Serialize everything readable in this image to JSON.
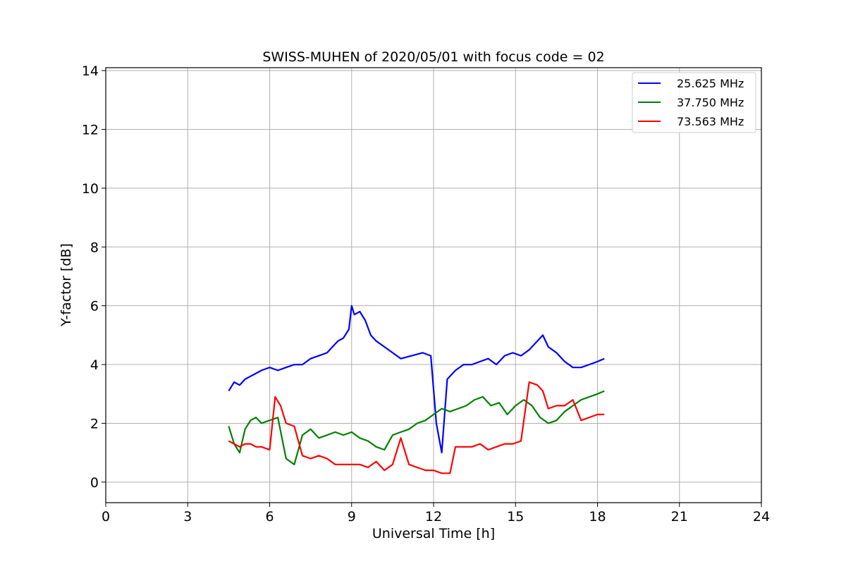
{
  "chart_data": {
    "type": "line",
    "title": "SWISS-MUHEN of 2020/05/01 with focus code = 02",
    "xlabel": "Universal Time [h]",
    "ylabel": "Y-factor [dB]",
    "xlim": [
      0,
      24
    ],
    "ylim": [
      -0.7,
      14.1
    ],
    "xticks": [
      0,
      3,
      6,
      9,
      12,
      15,
      18,
      21,
      24
    ],
    "yticks": [
      0,
      2,
      4,
      6,
      8,
      10,
      12,
      14
    ],
    "grid": true,
    "legend_position": "top-right",
    "series": [
      {
        "name": "25.625 MHz",
        "color": "#0000ff",
        "x": [
          4.5,
          4.7,
          4.9,
          5.1,
          5.3,
          5.5,
          5.7,
          6.0,
          6.3,
          6.6,
          6.9,
          7.2,
          7.5,
          7.8,
          8.1,
          8.3,
          8.5,
          8.7,
          8.9,
          9.0,
          9.1,
          9.3,
          9.5,
          9.7,
          9.9,
          10.2,
          10.5,
          10.8,
          11.2,
          11.6,
          11.9,
          12.1,
          12.3,
          12.5,
          12.8,
          13.1,
          13.4,
          13.7,
          14.0,
          14.3,
          14.6,
          14.9,
          15.2,
          15.5,
          15.8,
          16.0,
          16.2,
          16.5,
          16.8,
          17.1,
          17.4,
          17.7,
          18.0,
          18.25
        ],
        "y": [
          3.1,
          3.4,
          3.3,
          3.5,
          3.6,
          3.7,
          3.8,
          3.9,
          3.8,
          3.9,
          4.0,
          4.0,
          4.2,
          4.3,
          4.4,
          4.6,
          4.8,
          4.9,
          5.2,
          6.0,
          5.7,
          5.8,
          5.5,
          5.0,
          4.8,
          4.6,
          4.4,
          4.2,
          4.3,
          4.4,
          4.3,
          2.0,
          1.0,
          3.5,
          3.8,
          4.0,
          4.0,
          4.1,
          4.2,
          4.0,
          4.3,
          4.4,
          4.3,
          4.5,
          4.8,
          5.0,
          4.6,
          4.4,
          4.1,
          3.9,
          3.9,
          4.0,
          4.1,
          4.2
        ]
      },
      {
        "name": "37.750 MHz",
        "color": "#008000",
        "x": [
          4.5,
          4.7,
          4.9,
          5.1,
          5.3,
          5.5,
          5.7,
          6.0,
          6.3,
          6.6,
          6.9,
          7.2,
          7.5,
          7.8,
          8.1,
          8.4,
          8.7,
          9.0,
          9.3,
          9.6,
          9.9,
          10.2,
          10.5,
          10.8,
          11.1,
          11.4,
          11.7,
          12.0,
          12.3,
          12.6,
          12.9,
          13.2,
          13.5,
          13.8,
          14.1,
          14.4,
          14.7,
          15.0,
          15.3,
          15.6,
          15.9,
          16.2,
          16.5,
          16.8,
          17.1,
          17.4,
          17.7,
          18.0,
          18.25
        ],
        "y": [
          1.9,
          1.3,
          1.0,
          1.8,
          2.1,
          2.2,
          2.0,
          2.1,
          2.2,
          0.8,
          0.6,
          1.6,
          1.8,
          1.5,
          1.6,
          1.7,
          1.6,
          1.7,
          1.5,
          1.4,
          1.2,
          1.1,
          1.6,
          1.7,
          1.8,
          2.0,
          2.1,
          2.3,
          2.5,
          2.4,
          2.5,
          2.6,
          2.8,
          2.9,
          2.6,
          2.7,
          2.3,
          2.6,
          2.8,
          2.6,
          2.2,
          2.0,
          2.1,
          2.4,
          2.6,
          2.8,
          2.9,
          3.0,
          3.1
        ]
      },
      {
        "name": "73.563 MHz",
        "color": "#ff0000",
        "x": [
          4.5,
          4.7,
          4.9,
          5.1,
          5.3,
          5.5,
          5.7,
          6.0,
          6.2,
          6.4,
          6.6,
          6.9,
          7.2,
          7.5,
          7.8,
          8.1,
          8.4,
          8.7,
          9.0,
          9.3,
          9.6,
          9.9,
          10.2,
          10.5,
          10.8,
          11.1,
          11.4,
          11.7,
          12.0,
          12.3,
          12.6,
          12.8,
          13.1,
          13.4,
          13.7,
          14.0,
          14.3,
          14.6,
          14.9,
          15.2,
          15.5,
          15.8,
          16.0,
          16.2,
          16.5,
          16.8,
          17.1,
          17.4,
          17.7,
          18.0,
          18.25
        ],
        "y": [
          1.4,
          1.3,
          1.2,
          1.3,
          1.3,
          1.2,
          1.2,
          1.1,
          2.9,
          2.6,
          2.0,
          1.9,
          0.9,
          0.8,
          0.9,
          0.8,
          0.6,
          0.6,
          0.6,
          0.6,
          0.5,
          0.7,
          0.4,
          0.6,
          1.5,
          0.6,
          0.5,
          0.4,
          0.4,
          0.3,
          0.3,
          1.2,
          1.2,
          1.2,
          1.3,
          1.1,
          1.2,
          1.3,
          1.3,
          1.4,
          3.4,
          3.3,
          3.1,
          2.5,
          2.6,
          2.6,
          2.8,
          2.1,
          2.2,
          2.3,
          2.3
        ]
      }
    ]
  }
}
